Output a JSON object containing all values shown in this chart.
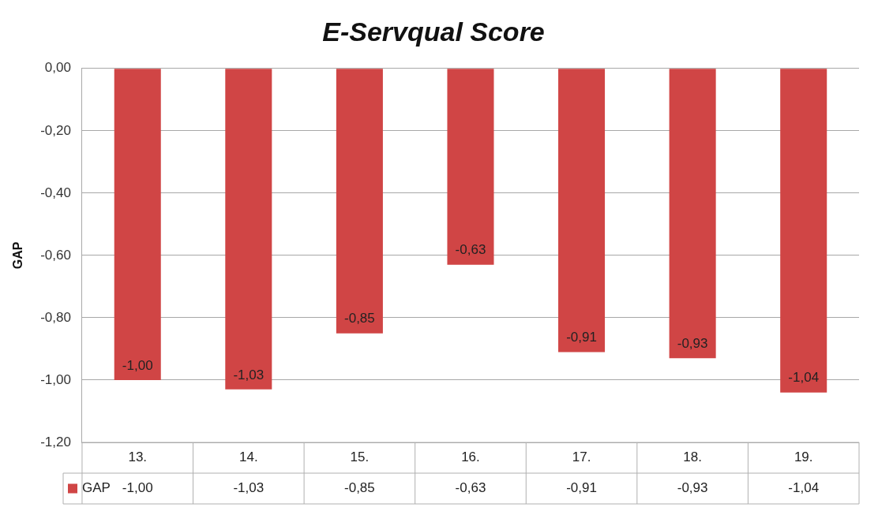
{
  "chart_data": {
    "type": "bar",
    "title": "E-Servqual Score",
    "ylabel": "GAP",
    "categories": [
      "13.",
      "14.",
      "15.",
      "16.",
      "17.",
      "18.",
      "19."
    ],
    "series": [
      {
        "name": "GAP",
        "color": "#d04545",
        "values": [
          -1.0,
          -1.03,
          -0.85,
          -0.63,
          -0.91,
          -0.93,
          -1.04
        ],
        "value_labels": [
          "-1,00",
          "-1,03",
          "-0,85",
          "-0,63",
          "-0,91",
          "-0,93",
          "-1,04"
        ]
      }
    ],
    "ylim": [
      -1.2,
      0
    ],
    "yticks": [
      {
        "value": 0,
        "label": "0,00"
      },
      {
        "value": -0.2,
        "label": "-0,20"
      },
      {
        "value": -0.4,
        "label": "-0,40"
      },
      {
        "value": -0.6,
        "label": "-0,60"
      },
      {
        "value": -0.8,
        "label": "-0,80"
      },
      {
        "value": -1,
        "label": "-1,00"
      },
      {
        "value": -1.2,
        "label": "-1,20"
      }
    ],
    "grid": "y",
    "legend": "bottom",
    "data_labels": true
  }
}
